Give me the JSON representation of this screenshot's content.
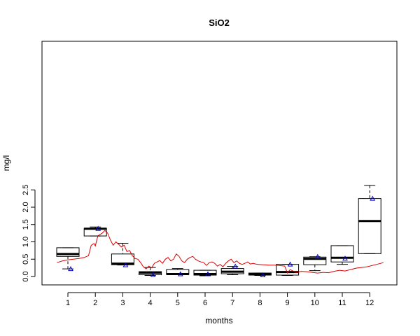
{
  "chart_data": {
    "type": "box",
    "title": "SiO2",
    "xlabel": "months",
    "ylabel": "mg/l",
    "categories": [
      "1",
      "2",
      "3",
      "4",
      "5",
      "6",
      "7",
      "8",
      "9",
      "10",
      "11",
      "12"
    ],
    "ylim": [
      -0.1,
      2.75
    ],
    "yticks": [
      0.0,
      0.5,
      1.0,
      1.5,
      2.0,
      2.5
    ],
    "ytick_labels": [
      "0.0",
      "0.5",
      "1.0",
      "1.5",
      "2.0",
      "2.5"
    ],
    "boxes": [
      {
        "category": "1",
        "lower_whisker": 0.22,
        "q1": 0.58,
        "median": 0.65,
        "q3": 0.83,
        "upper_whisker": 0.83
      },
      {
        "category": "2",
        "lower_whisker": 1.17,
        "q1": 1.17,
        "median": 1.38,
        "q3": 1.39,
        "upper_whisker": 1.43
      },
      {
        "category": "3",
        "lower_whisker": 0.33,
        "q1": 0.34,
        "median": 0.37,
        "q3": 0.65,
        "upper_whisker": 0.96
      },
      {
        "category": "4",
        "lower_whisker": 0.03,
        "q1": 0.05,
        "median": 0.11,
        "q3": 0.14,
        "upper_whisker": 0.26
      },
      {
        "category": "5",
        "lower_whisker": 0.06,
        "q1": 0.06,
        "median": 0.07,
        "q3": 0.2,
        "upper_whisker": 0.23
      },
      {
        "category": "6",
        "lower_whisker": 0.02,
        "q1": 0.04,
        "median": 0.07,
        "q3": 0.18,
        "upper_whisker": 0.18
      },
      {
        "category": "7",
        "lower_whisker": 0.05,
        "q1": 0.08,
        "median": 0.14,
        "q3": 0.23,
        "upper_whisker": 0.29
      },
      {
        "category": "8",
        "lower_whisker": 0.03,
        "q1": 0.04,
        "median": 0.07,
        "q3": 0.1,
        "upper_whisker": 0.1
      },
      {
        "category": "9",
        "lower_whisker": 0.03,
        "q1": 0.04,
        "median": 0.13,
        "q3": 0.35,
        "upper_whisker": 0.35
      },
      {
        "category": "10",
        "lower_whisker": 0.17,
        "q1": 0.34,
        "median": 0.51,
        "q3": 0.56,
        "upper_whisker": 0.57
      },
      {
        "category": "11",
        "lower_whisker": 0.35,
        "q1": 0.42,
        "median": 0.54,
        "q3": 0.89,
        "upper_whisker": 0.89
      },
      {
        "category": "12",
        "lower_whisker": 0.66,
        "q1": 0.66,
        "median": 1.6,
        "q3": 2.25,
        "upper_whisker": 2.63
      }
    ],
    "means": {
      "marker": "triangle",
      "color": "#0000cc",
      "values": [
        0.22,
        1.38,
        0.33,
        0.05,
        0.07,
        0.07,
        0.29,
        0.04,
        0.35,
        0.57,
        0.52,
        2.25
      ]
    },
    "line_series": {
      "color": "#dd0000",
      "x": [
        0.6,
        0.8,
        1.0,
        1.2,
        1.4,
        1.6,
        1.75,
        1.85,
        1.95,
        2.0,
        2.05,
        2.1,
        2.15,
        2.25,
        2.35,
        2.45,
        2.55,
        2.65,
        2.75,
        2.85,
        2.95,
        3.05,
        3.15,
        3.25,
        3.35,
        3.45,
        3.55,
        3.65,
        3.75,
        3.85,
        3.95,
        4.05,
        4.15,
        4.25,
        4.35,
        4.45,
        4.55,
        4.65,
        4.75,
        4.85,
        4.95,
        5.05,
        5.15,
        5.25,
        5.35,
        5.45,
        5.55,
        5.65,
        5.75,
        5.85,
        5.95,
        6.05,
        6.15,
        6.25,
        6.35,
        6.45,
        6.55,
        6.65,
        6.75,
        6.85,
        6.95,
        7.05,
        7.15,
        7.25,
        7.35,
        7.45,
        7.55,
        7.65,
        7.75,
        7.85,
        7.95,
        8.1,
        8.3,
        8.5,
        8.7,
        8.9,
        9.0,
        9.1,
        9.2,
        9.35,
        9.5,
        9.7,
        9.9,
        10.1,
        10.3,
        10.5,
        10.7,
        10.9,
        11.1,
        11.3,
        11.5,
        11.7,
        11.9,
        12.1,
        12.3,
        12.5
      ],
      "y": [
        0.4,
        0.45,
        0.48,
        0.5,
        0.52,
        0.55,
        0.6,
        0.9,
        0.95,
        0.88,
        1.05,
        1.18,
        1.2,
        1.25,
        1.33,
        1.25,
        1.05,
        0.9,
        1.0,
        0.93,
        0.85,
        0.9,
        0.72,
        0.75,
        0.6,
        0.52,
        0.5,
        0.4,
        0.28,
        0.22,
        0.3,
        0.25,
        0.38,
        0.42,
        0.46,
        0.38,
        0.5,
        0.55,
        0.45,
        0.5,
        0.65,
        0.58,
        0.45,
        0.4,
        0.5,
        0.55,
        0.58,
        0.5,
        0.45,
        0.42,
        0.4,
        0.32,
        0.4,
        0.42,
        0.38,
        0.3,
        0.35,
        0.28,
        0.38,
        0.45,
        0.5,
        0.4,
        0.45,
        0.38,
        0.35,
        0.38,
        0.42,
        0.36,
        0.38,
        0.36,
        0.35,
        0.34,
        0.33,
        0.33,
        0.32,
        0.3,
        0.1,
        0.2,
        0.16,
        0.12,
        0.15,
        0.14,
        0.12,
        0.1,
        0.12,
        0.11,
        0.15,
        0.18,
        0.16,
        0.2,
        0.24,
        0.26,
        0.28,
        0.32,
        0.36,
        0.4
      ]
    }
  }
}
